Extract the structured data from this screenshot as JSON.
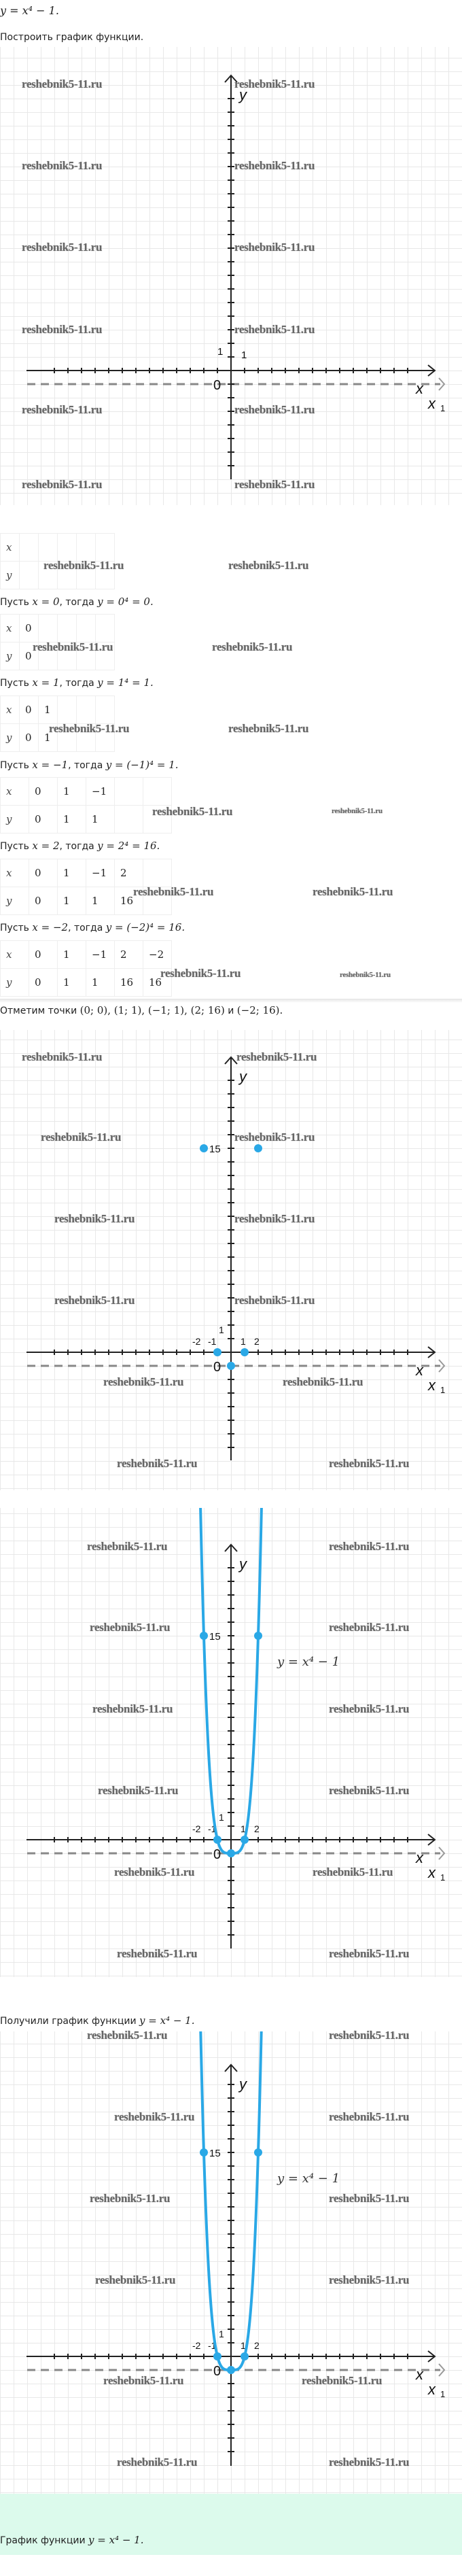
{
  "header": {
    "formula": "y = x⁴ − 1."
  },
  "task": "Построить график функции.",
  "watermark": "reshebnik5-11.ru",
  "tables": {
    "row_labels": [
      "x",
      "y"
    ],
    "items": [
      {
        "x": [
          "",
          "",
          "",
          "",
          ""
        ],
        "y": [
          "",
          "",
          "",
          "",
          ""
        ]
      },
      {
        "x": [
          "0",
          "",
          "",
          "",
          ""
        ],
        "y": [
          "0",
          "",
          "",
          "",
          ""
        ]
      },
      {
        "x": [
          "0",
          "1",
          "",
          "",
          ""
        ],
        "y": [
          "0",
          "1",
          "",
          "",
          ""
        ]
      },
      {
        "x": [
          "0",
          "1",
          "−1",
          "",
          ""
        ],
        "y": [
          "0",
          "1",
          "1",
          "",
          ""
        ]
      },
      {
        "x": [
          "0",
          "1",
          "−1",
          "2",
          ""
        ],
        "y": [
          "0",
          "1",
          "1",
          "16",
          ""
        ]
      },
      {
        "x": [
          "0",
          "1",
          "−1",
          "2",
          "−2"
        ],
        "y": [
          "0",
          "1",
          "1",
          "16",
          "16"
        ]
      }
    ]
  },
  "steps": [
    {
      "prefix": "Пусть ",
      "math1": "x = 0",
      "mid": ", тогда ",
      "math2": "y = 0⁴ = 0."
    },
    {
      "prefix": "Пусть ",
      "math1": "x = 1",
      "mid": ", тогда ",
      "math2": "y = 1⁴ = 1."
    },
    {
      "prefix": "Пусть ",
      "math1": "x = −1",
      "mid": ", тогда ",
      "math2": "y = (−1)⁴ = 1."
    },
    {
      "prefix": "Пусть ",
      "math1": "x = 2",
      "mid": ", тогда ",
      "math2": "y = 2⁴ = 16."
    },
    {
      "prefix": "Пусть ",
      "math1": "x = −2",
      "mid": ", тогда ",
      "math2": "y = (−2)⁴ = 16."
    }
  ],
  "mark_points": {
    "prefix": "Отметим точки ",
    "list": "(0; 0), (1; 1), (−1; 1), (2; 16)",
    "and": " и ",
    "last": "(−2; 16)."
  },
  "result": {
    "prefix": "Получили график функции ",
    "math": "y = x⁴ − 1."
  },
  "answer": {
    "prefix": "График функции ",
    "math": "y = x⁴ − 1."
  },
  "graph_labels": {
    "y_axis": "y",
    "x_axis": "x",
    "x1_axis": "x",
    "x1_sub": "1",
    "origin": "0",
    "one": "1",
    "minus_two": "-2",
    "minus_one": "-1",
    "two": "2",
    "fifteen": "15",
    "equation": "y = x⁴ − 1"
  },
  "chart_data": {
    "type": "line",
    "function": "y = x⁴ − 1",
    "points": [
      {
        "x": 0,
        "y": -1
      },
      {
        "x": 1,
        "y": 0
      },
      {
        "x": -1,
        "y": 0
      },
      {
        "x": 2,
        "y": 15
      },
      {
        "x": -2,
        "y": 15
      }
    ],
    "grid": true,
    "colors": {
      "curve": "#2aa8e6",
      "axis": "#222222",
      "shifted_axis": "#888888",
      "grid": "#e8e8e8",
      "answer_bg": "#dcfaec"
    }
  }
}
